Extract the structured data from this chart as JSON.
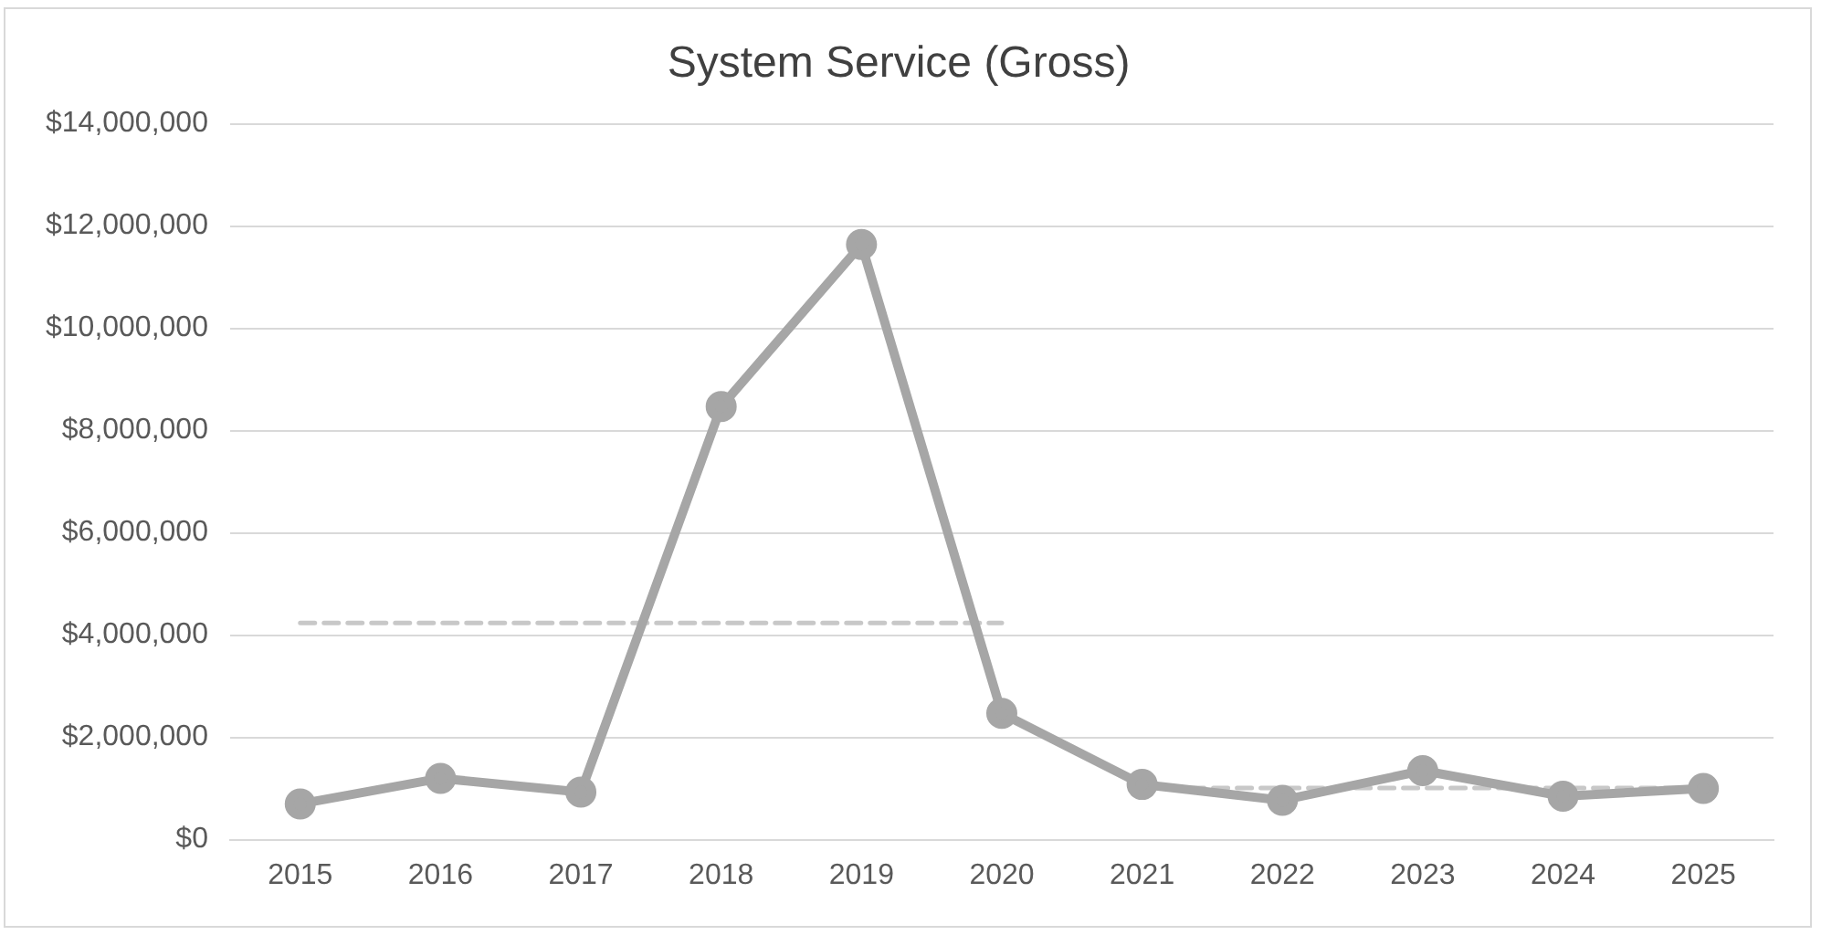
{
  "chart_data": {
    "type": "line",
    "title": "System Service (Gross)",
    "categories": [
      "2015",
      "2016",
      "2017",
      "2018",
      "2019",
      "2020",
      "2021",
      "2022",
      "2023",
      "2024",
      "2025"
    ],
    "series": [
      {
        "color": "#a6a6a6",
        "marker": "circle",
        "line_style": "solid",
        "values": [
          700000,
          1200000,
          930000,
          8470000,
          11640000,
          2470000,
          1080000,
          770000,
          1350000,
          850000,
          1000000
        ]
      },
      {
        "color": "#c8c8c8",
        "marker": "none",
        "line_style": "dashed",
        "values": [
          4240000,
          4240000,
          4240000,
          4240000,
          4240000,
          4240000,
          null,
          null,
          null,
          null,
          null
        ]
      },
      {
        "color": "#c8c8c8",
        "marker": "none",
        "line_style": "dashed",
        "values": [
          null,
          null,
          null,
          null,
          null,
          null,
          1010000,
          1010000,
          1010000,
          1010000,
          1010000
        ]
      }
    ],
    "ylim": [
      0,
      14000000
    ],
    "yticks": [
      {
        "value": 0,
        "label": "$0"
      },
      {
        "value": 2000000,
        "label": "$2,000,000"
      },
      {
        "value": 4000000,
        "label": "$4,000,000"
      },
      {
        "value": 6000000,
        "label": "$6,000,000"
      },
      {
        "value": 8000000,
        "label": "$8,000,000"
      },
      {
        "value": 10000000,
        "label": "$10,000,000"
      },
      {
        "value": 12000000,
        "label": "$12,000,000"
      },
      {
        "value": 14000000,
        "label": "$14,000,000"
      }
    ],
    "grid": "y",
    "legend": false
  }
}
